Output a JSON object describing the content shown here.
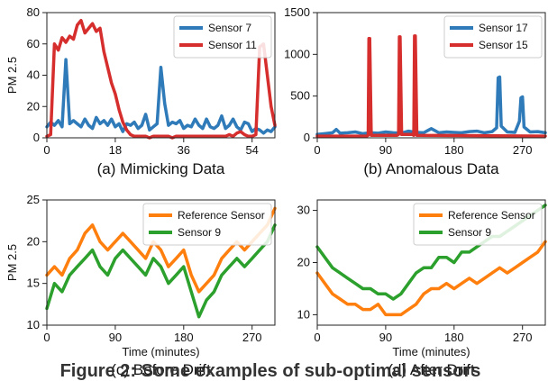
{
  "figure_caption": "Figure 2: Some examples of sub-optimal sensors",
  "chart_data": [
    {
      "type": "line",
      "caption": "(a) Mimicking Data",
      "xlabel": "",
      "ylabel": "PM 2.5",
      "xlim": [
        0,
        60
      ],
      "ylim": [
        0,
        80
      ],
      "xticks": [
        0,
        18,
        36,
        54
      ],
      "yticks": [
        0,
        20,
        40,
        60,
        80
      ],
      "legend_position": "top-right",
      "series": [
        {
          "name": "Sensor 7",
          "color": "#2f7ab8",
          "x": [
            0,
            1,
            2,
            3,
            4,
            5,
            6,
            7,
            8,
            9,
            10,
            11,
            12,
            13,
            14,
            15,
            16,
            17,
            18,
            19,
            20,
            21,
            22,
            23,
            24,
            25,
            26,
            27,
            28,
            29,
            30,
            31,
            32,
            33,
            34,
            35,
            36,
            37,
            38,
            39,
            40,
            41,
            42,
            43,
            44,
            45,
            46,
            47,
            48,
            49,
            50,
            51,
            52,
            53,
            54,
            55,
            56,
            57,
            58,
            59,
            60
          ],
          "y": [
            7,
            10,
            8,
            11,
            7,
            50,
            9,
            11,
            9,
            7,
            12,
            8,
            6,
            13,
            9,
            11,
            8,
            12,
            7,
            9,
            4,
            9,
            8,
            10,
            6,
            8,
            15,
            5,
            7,
            9,
            45,
            22,
            8,
            10,
            9,
            11,
            6,
            8,
            7,
            12,
            8,
            6,
            12,
            7,
            6,
            8,
            14,
            6,
            8,
            12,
            7,
            5,
            10,
            9,
            4,
            6,
            5,
            3,
            5,
            4,
            7
          ]
        },
        {
          "name": "Sensor 11",
          "color": "#d62d2d",
          "x": [
            0,
            1,
            2,
            3,
            4,
            5,
            6,
            7,
            8,
            9,
            10,
            11,
            12,
            13,
            14,
            15,
            16,
            17,
            18,
            19,
            20,
            21,
            22,
            23,
            24,
            25,
            26,
            27,
            28,
            29,
            30,
            31,
            32,
            33,
            34,
            35,
            36,
            37,
            38,
            39,
            40,
            41,
            42,
            43,
            44,
            45,
            46,
            47,
            48,
            49,
            50,
            51,
            52,
            53,
            54,
            55,
            56,
            57,
            58,
            59,
            60
          ],
          "y": [
            1,
            2,
            60,
            56,
            64,
            61,
            65,
            63,
            72,
            75,
            67,
            70,
            73,
            68,
            70,
            55,
            45,
            35,
            28,
            18,
            10,
            5,
            2,
            1,
            1,
            1,
            1,
            0,
            1,
            1,
            1,
            1,
            1,
            0,
            1,
            1,
            1,
            1,
            1,
            1,
            1,
            1,
            1,
            1,
            1,
            1,
            1,
            1,
            2,
            1,
            3,
            4,
            2,
            1,
            1,
            2,
            58,
            60,
            40,
            20,
            8
          ]
        }
      ]
    },
    {
      "type": "line",
      "caption": "(b) Anomalous Data",
      "xlabel": "",
      "ylabel": "",
      "xlim": [
        0,
        300
      ],
      "ylim": [
        0,
        1500
      ],
      "xticks": [
        0,
        90,
        180,
        270
      ],
      "yticks": [
        0,
        500,
        1000,
        1500
      ],
      "legend_position": "top-right",
      "series": [
        {
          "name": "Sensor 17",
          "color": "#2f7ab8",
          "x": [
            0,
            10,
            20,
            25,
            30,
            40,
            50,
            60,
            70,
            80,
            90,
            100,
            110,
            120,
            130,
            140,
            150,
            160,
            170,
            180,
            190,
            200,
            210,
            220,
            230,
            236,
            238,
            240,
            242,
            250,
            260,
            266,
            268,
            270,
            272,
            280,
            290,
            300
          ],
          "y": [
            40,
            50,
            60,
            100,
            55,
            60,
            70,
            50,
            60,
            55,
            70,
            60,
            55,
            80,
            65,
            60,
            110,
            60,
            70,
            65,
            60,
            75,
            80,
            60,
            75,
            120,
            720,
            730,
            140,
            70,
            65,
            200,
            480,
            490,
            130,
            70,
            75,
            60
          ]
        },
        {
          "name": "Sensor 15",
          "color": "#d62d2d",
          "x": [
            0,
            65,
            67,
            68,
            69,
            71,
            105,
            107,
            108,
            109,
            111,
            125,
            127,
            128,
            129,
            131,
            300
          ],
          "y": [
            20,
            20,
            30,
            1190,
            1190,
            30,
            30,
            40,
            1210,
            1210,
            40,
            40,
            30,
            1220,
            1220,
            30,
            20
          ]
        }
      ]
    },
    {
      "type": "line",
      "caption": "(c) Before Drift",
      "xlabel": "Time (minutes)",
      "ylabel": "PM 2.5",
      "xlim": [
        0,
        300
      ],
      "ylim": [
        10,
        25
      ],
      "xticks": [
        0,
        90,
        180,
        270
      ],
      "yticks": [
        10,
        15,
        20,
        25
      ],
      "legend_position": "top-right",
      "series": [
        {
          "name": "Reference Sensor",
          "color": "#ff7f0e",
          "x": [
            0,
            10,
            20,
            30,
            40,
            50,
            60,
            70,
            80,
            90,
            100,
            110,
            120,
            130,
            140,
            150,
            160,
            170,
            180,
            190,
            200,
            210,
            220,
            230,
            240,
            250,
            260,
            270,
            280,
            290,
            300
          ],
          "y": [
            16,
            17,
            16,
            18,
            19,
            21,
            22,
            20,
            19,
            20,
            21,
            20,
            19,
            18,
            20,
            19,
            17,
            18,
            19,
            16,
            14,
            15,
            16,
            18,
            19,
            20,
            19,
            20,
            21,
            22,
            24
          ]
        },
        {
          "name": "Sensor 9",
          "color": "#2ca02c",
          "x": [
            0,
            10,
            20,
            30,
            40,
            50,
            60,
            70,
            80,
            90,
            100,
            110,
            120,
            130,
            140,
            150,
            160,
            170,
            180,
            190,
            200,
            210,
            220,
            230,
            240,
            250,
            260,
            270,
            280,
            290,
            300
          ],
          "y": [
            12,
            15,
            14,
            16,
            17,
            18,
            19,
            17,
            16,
            18,
            19,
            18,
            17,
            16,
            18,
            17,
            15,
            16,
            17,
            14,
            11,
            13,
            14,
            16,
            17,
            18,
            17,
            18,
            19,
            20,
            22
          ]
        }
      ]
    },
    {
      "type": "line",
      "caption": "(d) After Drift",
      "xlabel": "Time (minutes)",
      "ylabel": "",
      "xlim": [
        0,
        300
      ],
      "ylim": [
        8,
        32
      ],
      "xticks": [
        0,
        90,
        180,
        270
      ],
      "yticks": [
        10,
        20,
        30
      ],
      "legend_position": "top-right",
      "series": [
        {
          "name": "Reference Sensor",
          "color": "#ff7f0e",
          "x": [
            0,
            10,
            20,
            30,
            40,
            50,
            60,
            70,
            80,
            90,
            100,
            110,
            120,
            130,
            140,
            150,
            160,
            170,
            180,
            190,
            200,
            210,
            220,
            230,
            240,
            250,
            260,
            270,
            280,
            290,
            300
          ],
          "y": [
            18,
            16,
            14,
            13,
            12,
            12,
            11,
            11,
            12,
            10,
            10,
            10,
            11,
            12,
            14,
            15,
            15,
            16,
            15,
            16,
            17,
            16,
            17,
            18,
            19,
            18,
            19,
            20,
            21,
            22,
            24
          ]
        },
        {
          "name": "Sensor 9",
          "color": "#2ca02c",
          "x": [
            0,
            10,
            20,
            30,
            40,
            50,
            60,
            70,
            80,
            90,
            100,
            110,
            120,
            130,
            140,
            150,
            160,
            170,
            180,
            190,
            200,
            210,
            220,
            230,
            240,
            250,
            260,
            270,
            280,
            290,
            300
          ],
          "y": [
            23,
            21,
            19,
            18,
            17,
            16,
            15,
            15,
            14,
            14,
            13,
            14,
            16,
            18,
            19,
            19,
            21,
            21,
            20,
            22,
            22,
            23,
            24,
            25,
            25,
            26,
            27,
            28,
            29,
            30,
            31
          ]
        }
      ]
    }
  ]
}
